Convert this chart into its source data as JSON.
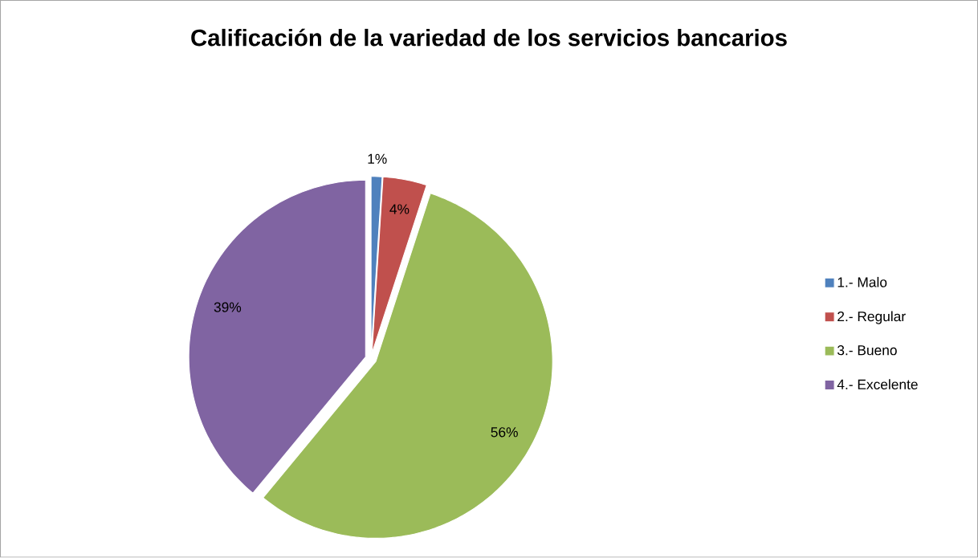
{
  "chart_data": {
    "type": "pie",
    "title": "Calificación de la variedad de los servicios bancarios",
    "categories": [
      "1.- Malo",
      "2.- Regular",
      "3.- Bueno",
      "4.- Excelente"
    ],
    "values": [
      1,
      4,
      56,
      39
    ],
    "value_labels": [
      "1%",
      "4%",
      "56%",
      "39%"
    ],
    "colors": [
      "#4f81bd",
      "#c0504d",
      "#9bbb59",
      "#8064a2"
    ],
    "legend": "right"
  }
}
